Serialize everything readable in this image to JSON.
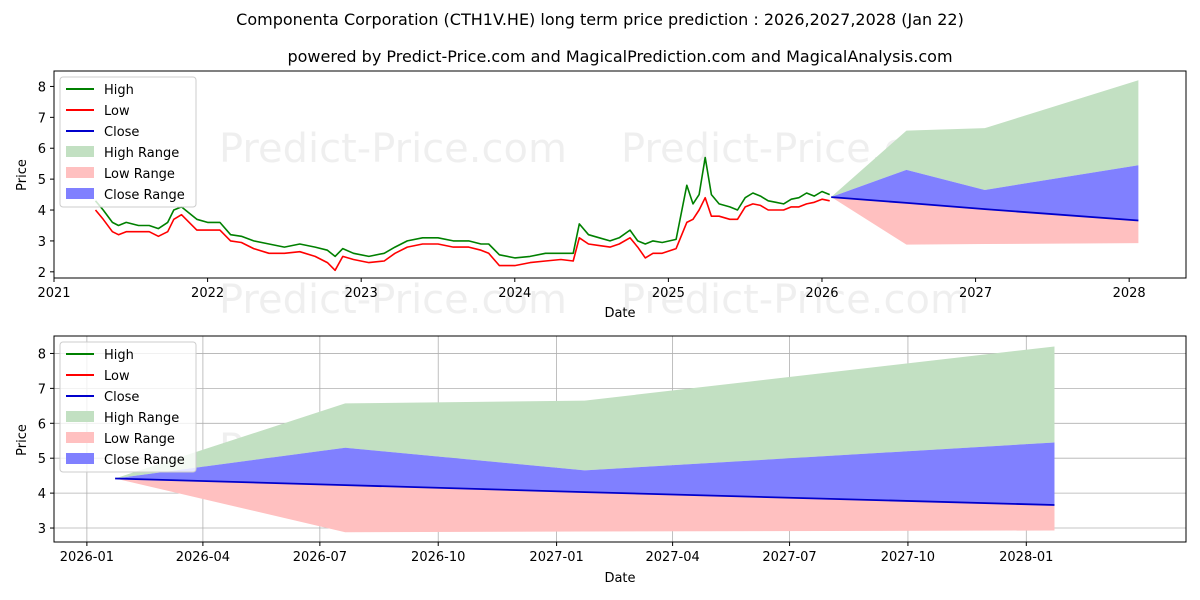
{
  "chart_data": [
    {
      "type": "line",
      "title": "Componenta Corporation (CTH1V.HE) long term price prediction : 2026,2027,2028 (Jan 22)",
      "subtitle": "powered by Predict-Price.com and MagicalPrediction.com and MagicalAnalysis.com",
      "watermark": "Predict-Price.com",
      "xlabel": "Date",
      "ylabel": "Price",
      "xlim": [
        2021.0,
        2028.37
      ],
      "ylim": [
        1.8,
        8.5
      ],
      "xticks": [
        2021,
        2022,
        2023,
        2024,
        2025,
        2026,
        2027,
        2028
      ],
      "xtick_labels": [
        "2021",
        "2022",
        "2023",
        "2024",
        "2025",
        "2026",
        "2027",
        "2028"
      ],
      "yticks": [
        2,
        3,
        4,
        5,
        6,
        7,
        8
      ],
      "grid": false,
      "legend_position": "top-left",
      "legend": [
        "High",
        "Low",
        "Close",
        "High Range",
        "Low Range",
        "Close Range"
      ],
      "colors": {
        "high": "#008000",
        "low": "#ff0000",
        "close": "#0000cc",
        "high_range": "#c2e0c2",
        "low_range": "#ffc0c0",
        "close_range": "#8080ff"
      },
      "history_dates": [
        2021.27,
        2021.32,
        2021.38,
        2021.42,
        2021.47,
        2021.55,
        2021.62,
        2021.68,
        2021.74,
        2021.78,
        2021.83,
        2021.88,
        2021.93,
        2022.0,
        2022.08,
        2022.15,
        2022.22,
        2022.3,
        2022.4,
        2022.5,
        2022.6,
        2022.7,
        2022.78,
        2022.83,
        2022.88,
        2022.95,
        2023.05,
        2023.15,
        2023.22,
        2023.3,
        2023.4,
        2023.5,
        2023.6,
        2023.7,
        2023.78,
        2023.83,
        2023.9,
        2024.0,
        2024.1,
        2024.2,
        2024.3,
        2024.38,
        2024.42,
        2024.48,
        2024.55,
        2024.62,
        2024.68,
        2024.75,
        2024.8,
        2024.85,
        2024.9,
        2024.96,
        2025.05,
        2025.12,
        2025.16,
        2025.2,
        2025.24,
        2025.28,
        2025.33,
        2025.4,
        2025.45,
        2025.5,
        2025.55,
        2025.6,
        2025.65,
        2025.7,
        2025.75,
        2025.8,
        2025.85,
        2025.9,
        2025.95,
        2026.0,
        2026.05
      ],
      "history_high": [
        4.3,
        4.0,
        3.6,
        3.5,
        3.6,
        3.5,
        3.5,
        3.4,
        3.6,
        4.0,
        4.1,
        3.9,
        3.7,
        3.6,
        3.6,
        3.2,
        3.15,
        3.0,
        2.9,
        2.8,
        2.9,
        2.8,
        2.7,
        2.5,
        2.75,
        2.6,
        2.5,
        2.6,
        2.8,
        3.0,
        3.1,
        3.1,
        3.0,
        3.0,
        2.9,
        2.9,
        2.55,
        2.45,
        2.5,
        2.6,
        2.6,
        2.6,
        3.55,
        3.2,
        3.1,
        3.0,
        3.1,
        3.35,
        3.0,
        2.9,
        3.0,
        2.95,
        3.05,
        4.8,
        4.2,
        4.5,
        5.7,
        4.5,
        4.2,
        4.1,
        4.0,
        4.4,
        4.55,
        4.45,
        4.3,
        4.25,
        4.2,
        4.35,
        4.4,
        4.55,
        4.45,
        4.6,
        4.5
      ],
      "history_low": [
        4.0,
        3.7,
        3.3,
        3.2,
        3.3,
        3.3,
        3.3,
        3.15,
        3.3,
        3.7,
        3.85,
        3.6,
        3.35,
        3.35,
        3.35,
        3.0,
        2.95,
        2.75,
        2.6,
        2.6,
        2.65,
        2.5,
        2.3,
        2.05,
        2.5,
        2.4,
        2.3,
        2.35,
        2.6,
        2.8,
        2.9,
        2.9,
        2.8,
        2.8,
        2.7,
        2.6,
        2.2,
        2.2,
        2.3,
        2.35,
        2.4,
        2.35,
        3.1,
        2.9,
        2.85,
        2.8,
        2.9,
        3.1,
        2.8,
        2.45,
        2.6,
        2.6,
        2.75,
        3.6,
        3.7,
        4.0,
        4.4,
        3.8,
        3.8,
        3.7,
        3.7,
        4.1,
        4.2,
        4.15,
        4.0,
        4.0,
        4.0,
        4.1,
        4.1,
        4.2,
        4.25,
        4.35,
        4.3
      ],
      "forecast_dates": [
        2026.06,
        2026.55,
        2027.06,
        2028.06
      ],
      "forecast_close": [
        4.42,
        4.23,
        4.03,
        3.66
      ],
      "high_range": {
        "upper": [
          4.42,
          6.57,
          6.65,
          8.2
        ],
        "lower": [
          4.42,
          5.3,
          4.65,
          5.45
        ]
      },
      "low_range": {
        "upper": [
          4.42,
          4.23,
          4.03,
          3.66
        ],
        "lower": [
          4.42,
          2.88,
          2.9,
          2.93
        ]
      },
      "close_range": {
        "upper": [
          4.42,
          5.3,
          4.65,
          5.45
        ],
        "lower": [
          4.42,
          4.23,
          4.03,
          3.66
        ]
      }
    },
    {
      "type": "line",
      "xlabel": "Date",
      "ylabel": "Price",
      "xlim": [
        2025.93,
        2028.34
      ],
      "ylim": [
        2.6,
        8.5
      ],
      "xticks": [
        2026.0,
        2026.247,
        2026.496,
        2026.748,
        2027.0,
        2027.247,
        2027.496,
        2027.748,
        2028.0
      ],
      "xtick_labels": [
        "2026-01",
        "2026-04",
        "2026-07",
        "2026-10",
        "2027-01",
        "2027-04",
        "2027-07",
        "2027-10",
        "2028-01"
      ],
      "yticks": [
        3,
        4,
        5,
        6,
        7,
        8
      ],
      "grid": true,
      "legend_position": "top-left",
      "legend": [
        "High",
        "Low",
        "Close",
        "High Range",
        "Low Range",
        "Close Range"
      ],
      "forecast_dates": [
        2026.06,
        2026.55,
        2027.06,
        2028.06
      ],
      "forecast_close": [
        4.42,
        4.23,
        4.03,
        3.66
      ],
      "high_range": {
        "upper": [
          4.42,
          6.57,
          6.65,
          8.2
        ],
        "lower": [
          4.42,
          5.3,
          4.65,
          5.45
        ]
      },
      "low_range": {
        "upper": [
          4.42,
          4.23,
          4.03,
          3.66
        ],
        "lower": [
          4.42,
          2.88,
          2.9,
          2.93
        ]
      },
      "close_range": {
        "upper": [
          4.42,
          5.3,
          4.65,
          5.45
        ],
        "lower": [
          4.42,
          4.23,
          4.03,
          3.66
        ]
      }
    }
  ]
}
